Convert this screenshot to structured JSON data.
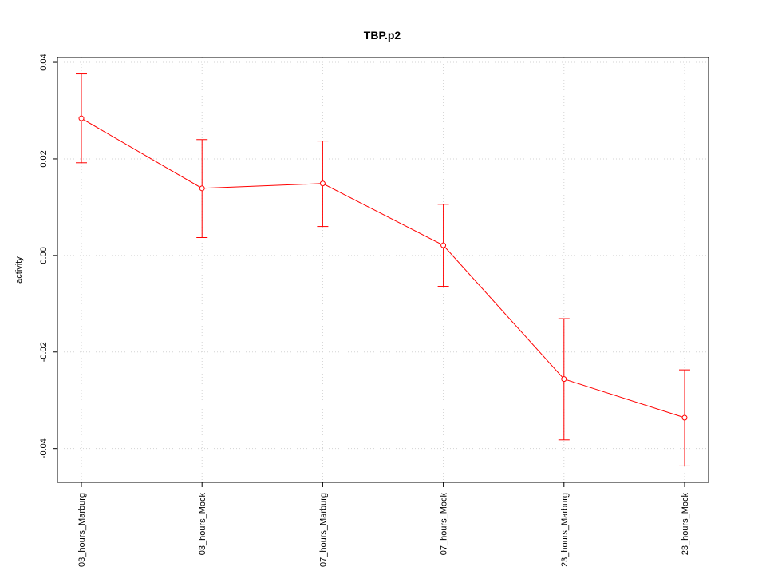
{
  "chart_data": {
    "type": "line",
    "title": "TBP.p2",
    "xlabel": "",
    "ylabel": "activity",
    "categories": [
      "03_hours_Marburg",
      "03_hours_Mock",
      "07_hours_Marburg",
      "07_hours_Mock",
      "23_hours_Marburg",
      "23_hours_Mock"
    ],
    "series": [
      {
        "values": [
          0.0284,
          0.0139,
          0.0149,
          0.0021,
          -0.0256,
          -0.0336
        ],
        "error_lower": [
          0.0192,
          0.0037,
          0.006,
          -0.0064,
          -0.0382,
          -0.0436
        ],
        "error_upper": [
          0.0376,
          0.024,
          0.0237,
          0.0106,
          -0.0131,
          -0.0237
        ]
      }
    ],
    "yticks": [
      "-0.04",
      "-0.02",
      "0.00",
      "0.02",
      "0.04"
    ],
    "ytick_values": [
      -0.04,
      -0.02,
      0.0,
      0.02,
      0.04
    ],
    "ylim": [
      -0.047,
      0.041
    ],
    "grid": true,
    "colors": {
      "series": "#ff0000",
      "grid": "#d3d3d3",
      "axis": "#000000"
    }
  }
}
